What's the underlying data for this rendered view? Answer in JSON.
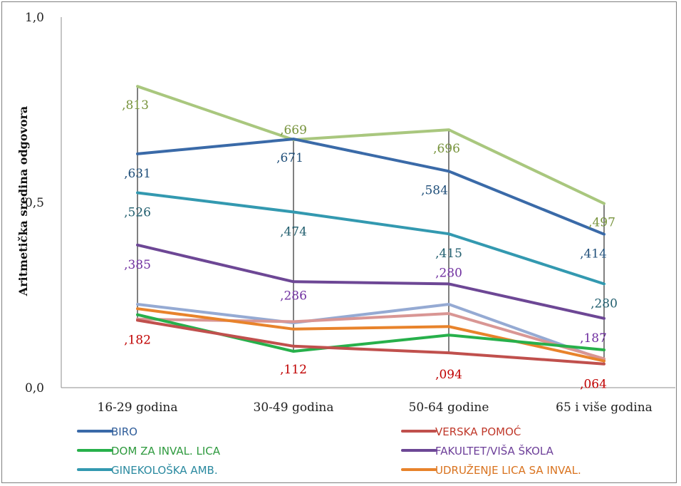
{
  "chart_data": {
    "type": "line",
    "ylabel": "Aritmetička sredina odgovora",
    "xlabel": "",
    "ylim": [
      0,
      1
    ],
    "yticks": [
      "0,0",
      "0,5",
      "1,0"
    ],
    "ytick_values": [
      0,
      0.5,
      1
    ],
    "categories": [
      "16-29 godina",
      "30-49 godina",
      "50-64 godine",
      "65 i više godina"
    ],
    "series": [
      {
        "name": "",
        "color": "#a9c77e",
        "values": [
          0.813,
          0.669,
          0.696,
          0.497
        ],
        "labels": [
          ",813",
          ",669",
          ",696",
          ",497"
        ],
        "label_color": "#77933c"
      },
      {
        "name": "BIRO",
        "color": "#3a6aa8",
        "values": [
          0.631,
          0.671,
          0.584,
          0.414
        ],
        "labels": [
          ",631",
          ",671",
          ",584",
          ",414"
        ],
        "label_color": "#1f4e79"
      },
      {
        "name": "GINEKOLOŠKA AMB.",
        "color": "#3399b0",
        "values": [
          0.526,
          0.474,
          0.415,
          0.28
        ],
        "labels": [
          ",526",
          ",474",
          ",415",
          ",280"
        ],
        "label_color": "#215e6e"
      },
      {
        "name": "FAKULTET/VIŠA ŠKOLA",
        "color": "#6d4795",
        "values": [
          0.385,
          0.286,
          0.28,
          0.187
        ],
        "labels": [
          ",385",
          ",286",
          ",280",
          ",187"
        ],
        "label_color": "#7030a0"
      },
      {
        "name": "",
        "color": "#95aad3",
        "values": [
          0.225,
          0.175,
          0.225,
          0.075
        ],
        "labels": [],
        "label_color": "#95aad3"
      },
      {
        "name": "",
        "color": "#d99694",
        "values": [
          0.185,
          0.178,
          0.2,
          0.078
        ],
        "labels": [],
        "label_color": "#d99694"
      },
      {
        "name": "UDRUŽENJE LICA SA INVAL.",
        "color": "#e8832b",
        "values": [
          0.213,
          0.158,
          0.165,
          0.072
        ],
        "labels": [],
        "label_color": "#e8832b"
      },
      {
        "name": "DOM ZA INVAL. LICA",
        "color": "#27b04b",
        "values": [
          0.197,
          0.098,
          0.142,
          0.102
        ],
        "labels": [],
        "label_color": "#27b04b"
      },
      {
        "name": "VERSKA POMOĆ",
        "color": "#c0504d",
        "values": [
          0.182,
          0.112,
          0.094,
          0.064
        ],
        "labels": [
          ",182",
          ",112",
          ",094",
          ",064"
        ],
        "label_color": "#c00000"
      }
    ],
    "legend": [
      {
        "name": "BIRO",
        "color": "#3a6aa8",
        "text_color": "#2e5c99"
      },
      {
        "name": "VERSKA POMOĆ",
        "color": "#c0504d",
        "text_color": "#c0392b"
      },
      {
        "name": "DOM ZA INVAL. LICA",
        "color": "#27b04b",
        "text_color": "#2e9a3e"
      },
      {
        "name": "FAKULTET/VIŠA ŠKOLA",
        "color": "#6d4795",
        "text_color": "#6d3f99"
      },
      {
        "name": "GINEKOLOŠKA AMB.",
        "color": "#3399b0",
        "text_color": "#2b8aa0"
      },
      {
        "name": "UDRUŽENJE LICA SA INVAL.",
        "color": "#e8832b",
        "text_color": "#d9731f"
      }
    ],
    "legend_position": "bottom",
    "grid": false
  }
}
